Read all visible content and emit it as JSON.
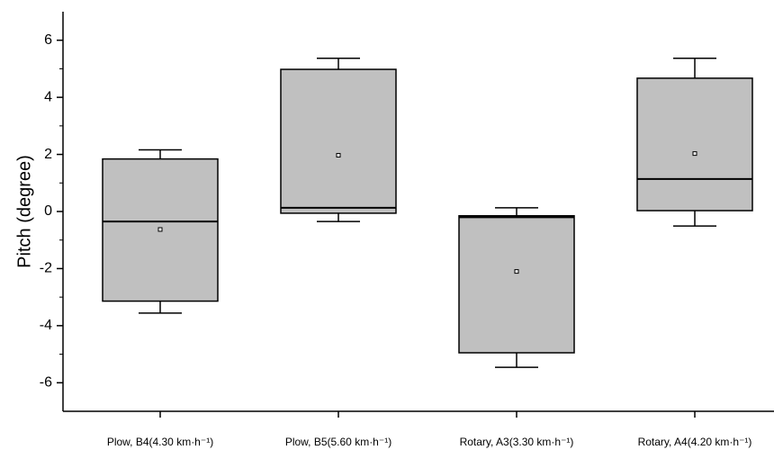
{
  "chart_data": {
    "type": "box",
    "y_label": "Pitch (degree)",
    "categories": [
      "Plow, B4(4.30 km·h⁻¹)",
      "Plow, B5(5.60 km·h⁻¹)",
      "Rotary, A3(3.30 km·h⁻¹)",
      "Rotary, A4(4.20 km·h⁻¹)"
    ],
    "whisker_high": [
      2.16,
      5.37,
      0.13,
      5.37
    ],
    "q3": [
      1.84,
      4.98,
      -0.15,
      4.67
    ],
    "median": [
      -0.35,
      0.13,
      -0.2,
      1.14
    ],
    "q1": [
      -3.14,
      -0.06,
      -4.95,
      0.03
    ],
    "whisker_low": [
      -3.56,
      -0.35,
      -5.46,
      -0.51
    ],
    "mean": [
      -0.63,
      1.97,
      -2.1,
      2.03
    ],
    "color": "#c0c0c0",
    "ylim": [
      -7,
      7
    ],
    "yticks": [
      -6,
      -4,
      -2,
      0,
      2,
      4,
      6
    ],
    "minor_yticks": [
      -5,
      -3,
      -1,
      1,
      3,
      5
    ]
  }
}
